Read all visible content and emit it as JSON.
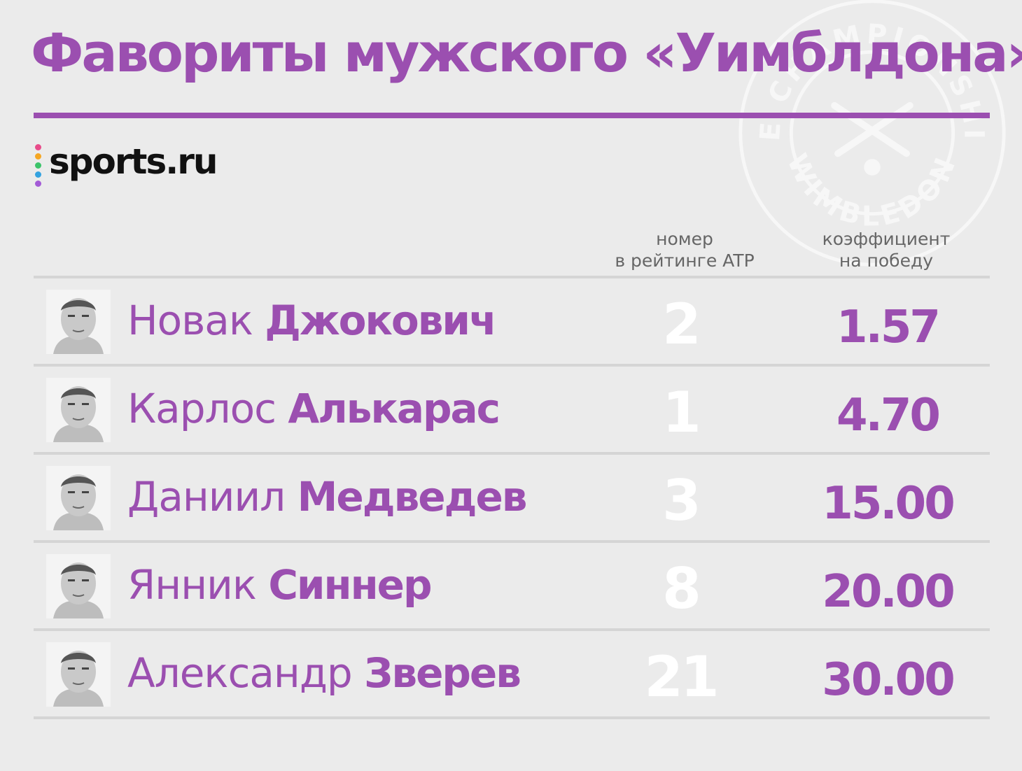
{
  "title": "Фавориты мужского «Уимблдона»",
  "logo": {
    "text": "sports.ru",
    "dot_colors": [
      "#e84b8a",
      "#f5a623",
      "#3cc46a",
      "#34a3e0",
      "#a35bd6"
    ]
  },
  "seal": {
    "top_text": "THE CHAMPIONSHIPS",
    "bottom_text": "WIMBLEDON"
  },
  "colors": {
    "accent": "#9b4fb0",
    "background": "#ebebeb",
    "rank_text": "#ffffff",
    "rule": "#d5d5d5"
  },
  "chart_data": {
    "type": "table",
    "title": "Фавориты мужского «Уимблдона»",
    "columns": [
      "",
      "номер в рейтинге ATP",
      "коэффициент на победу"
    ],
    "header_lines": {
      "rank": [
        "номер",
        "в рейтинге ATP"
      ],
      "odds": [
        "коэффициент",
        "на победу"
      ]
    },
    "rows": [
      {
        "first": "Новак",
        "last": "Джокович",
        "rank": "2",
        "odds": "1.57",
        "photo_icon": "player-photo"
      },
      {
        "first": "Карлос",
        "last": "Алькарас",
        "rank": "1",
        "odds": "4.70",
        "photo_icon": "player-photo"
      },
      {
        "first": "Даниил",
        "last": "Медведев",
        "rank": "3",
        "odds": "15.00",
        "photo_icon": "player-photo"
      },
      {
        "first": "Янник",
        "last": "Синнер",
        "rank": "8",
        "odds": "20.00",
        "photo_icon": "player-photo"
      },
      {
        "first": "Александр",
        "last": "Зверев",
        "rank": "21",
        "odds": "30.00",
        "photo_icon": "player-photo"
      }
    ]
  }
}
